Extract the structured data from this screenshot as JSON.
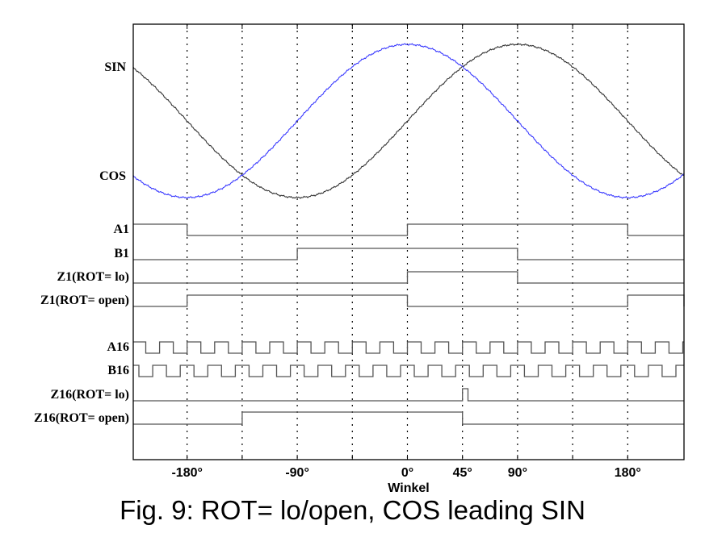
{
  "caption": "Fig. 9: ROT= lo/open, COS leading SIN",
  "chart_data": {
    "type": "line",
    "title": "Fig. 9: ROT= lo/open, COS leading SIN",
    "xlabel": "Winkel",
    "ylabel": "",
    "xlim": [
      -224,
      226
    ],
    "grid": "vertical dotted lines every 45°",
    "x_ticks": [
      {
        "value": -180,
        "label": "-180°"
      },
      {
        "value": -90,
        "label": "-90°"
      },
      {
        "value": 0,
        "label": "0°"
      },
      {
        "value": 45,
        "label": "45°"
      },
      {
        "value": 90,
        "label": "90°"
      },
      {
        "value": 180,
        "label": "180°"
      }
    ],
    "grid_x": [
      -180,
      -135,
      -90,
      -45,
      0,
      45,
      90,
      135,
      180
    ],
    "analog_series": [
      {
        "name": "SIN",
        "label": "SIN",
        "function": "sin",
        "amplitude": 1,
        "color": "#333333"
      },
      {
        "name": "COS",
        "label": "COS",
        "function": "cos",
        "amplitude": 1,
        "color": "#3a3aff"
      }
    ],
    "digital_series": [
      {
        "name": "A1",
        "label": "A1",
        "high_intervals": [
          [
            -224,
            -180
          ],
          [
            0,
            180
          ]
        ]
      },
      {
        "name": "B1",
        "label": "B1",
        "high_intervals": [
          [
            -90,
            90
          ]
        ]
      },
      {
        "name": "Z1_lo",
        "label": "Z1(ROT= lo)",
        "high_intervals": [
          [
            0,
            90
          ]
        ]
      },
      {
        "name": "Z1_open",
        "label": "Z1(ROT= open)",
        "high_intervals": [
          [
            -180,
            0
          ],
          [
            180,
            226
          ]
        ]
      },
      {
        "name": "A16",
        "label": "A16",
        "period_deg": 22.5,
        "high_phase_deg": 0,
        "duty": 0.5
      },
      {
        "name": "B16",
        "label": "B16",
        "period_deg": 22.5,
        "high_phase_deg": -5.625,
        "duty": 0.5
      },
      {
        "name": "Z16_lo",
        "label": "Z16(ROT= lo)",
        "high_intervals": [
          [
            45,
            49.5
          ]
        ]
      },
      {
        "name": "Z16_open",
        "label": "Z16(ROT= open)",
        "high_intervals": [
          [
            -135,
            45
          ]
        ]
      }
    ]
  }
}
